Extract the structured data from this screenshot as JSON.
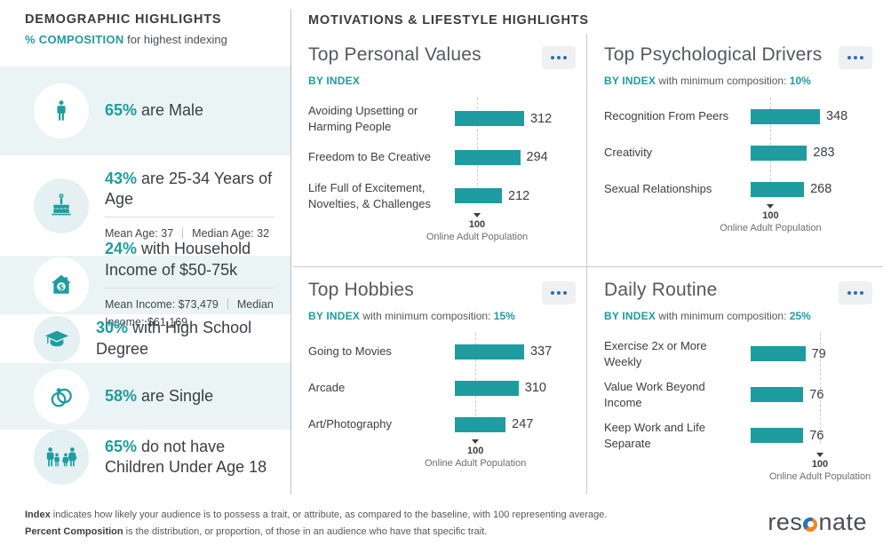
{
  "demographics": {
    "title": "DEMOGRAPHIC HIGHLIGHTS",
    "subtitle_em": "% COMPOSITION",
    "subtitle_rest": " for highest indexing",
    "rows": [
      {
        "value": "65%",
        "label": " are Male",
        "icon": "male-icon"
      },
      {
        "value": "43%",
        "label": " are 25-34 Years of Age",
        "icon": "birthday-cake-icon",
        "stats": [
          "Mean Age: 37",
          "Median Age: 32"
        ]
      },
      {
        "value": "24%",
        "label": " with Household Income of $50-75k",
        "icon": "house-dollar-icon",
        "stats": [
          "Mean Income: $73,479",
          "Median Income: $61,169"
        ]
      },
      {
        "value": "30%",
        "label": " with High School Degree",
        "icon": "graduation-cap-icon"
      },
      {
        "value": "58%",
        "label": " are Single",
        "icon": "wedding-rings-icon"
      },
      {
        "value": "65%",
        "label": " do not have Children Under Age 18",
        "icon": "family-icon"
      }
    ]
  },
  "motivations": {
    "title": "MOTIVATIONS & LIFESTYLE HIGHLIGHTS"
  },
  "chart_data": [
    {
      "type": "bar",
      "title": "Top Personal Values",
      "subtitle_by": "BY INDEX",
      "subtitle_rest": "",
      "min_composition": "",
      "categories": [
        "Avoiding Upsetting or Harming People",
        "Freedom to Be Creative",
        "Life Full of Excitement, Novelties, & Challenges"
      ],
      "values": [
        312,
        294,
        212
      ],
      "baseline": 100,
      "baseline_label": "100",
      "baseline_caption": "Online Adult Population",
      "bar_color": "#1e9ca0",
      "xlim": [
        0,
        312
      ]
    },
    {
      "type": "bar",
      "title": "Top Psychological Drivers",
      "subtitle_by": "BY INDEX",
      "subtitle_rest": " with minimum composition: ",
      "min_composition": "10%",
      "categories": [
        "Recognition From Peers",
        "Creativity",
        "Sexual Relationships"
      ],
      "values": [
        348,
        283,
        268
      ],
      "baseline": 100,
      "baseline_label": "100",
      "baseline_caption": "Online Adult Population",
      "bar_color": "#1e9ca0",
      "xlim": [
        0,
        348
      ]
    },
    {
      "type": "bar",
      "title": "Top Hobbies",
      "subtitle_by": "BY INDEX",
      "subtitle_rest": " with minimum composition: ",
      "min_composition": "15%",
      "categories": [
        "Going to Movies",
        "Arcade",
        "Art/Photography"
      ],
      "values": [
        337,
        310,
        247
      ],
      "baseline": 100,
      "baseline_label": "100",
      "baseline_caption": "Online Adult Population",
      "bar_color": "#1e9ca0",
      "xlim": [
        0,
        337
      ]
    },
    {
      "type": "bar",
      "title": "Daily Routine",
      "subtitle_by": "BY INDEX",
      "subtitle_rest": " with minimum composition: ",
      "min_composition": "25%",
      "categories": [
        "Exercise 2x or More Weekly",
        "Value Work Beyond Income",
        "Keep Work and Life Separate"
      ],
      "values": [
        79,
        76,
        76
      ],
      "baseline": 100,
      "baseline_label": "100",
      "baseline_caption": "Online Adult Population",
      "bar_color": "#1e9ca0",
      "xlim": [
        0,
        100
      ]
    }
  ],
  "footer": {
    "line1_bold": "Index",
    "line1_rest": " indicates how likely your audience is to possess a trait, or attribute, as compared to the baseline, with 100 representing average.",
    "line2_bold": "Percent Composition",
    "line2_rest": " is the distribution, or proportion, of those in an audience who have that specific trait.",
    "logo_pre": "res",
    "logo_post": "nate"
  },
  "colors": {
    "accent_teal": "#1e9ca0",
    "row_alt_bg": "#eaf4f5",
    "icon_circle_bg": "#e4f0f2",
    "dots_blue": "#2d6fb5",
    "dark_text": "#3b3e42",
    "title_gray": "#55585c",
    "divider": "#c7cacc",
    "logo_orange": "#f5851f",
    "logo_blue": "#2d70b3"
  }
}
